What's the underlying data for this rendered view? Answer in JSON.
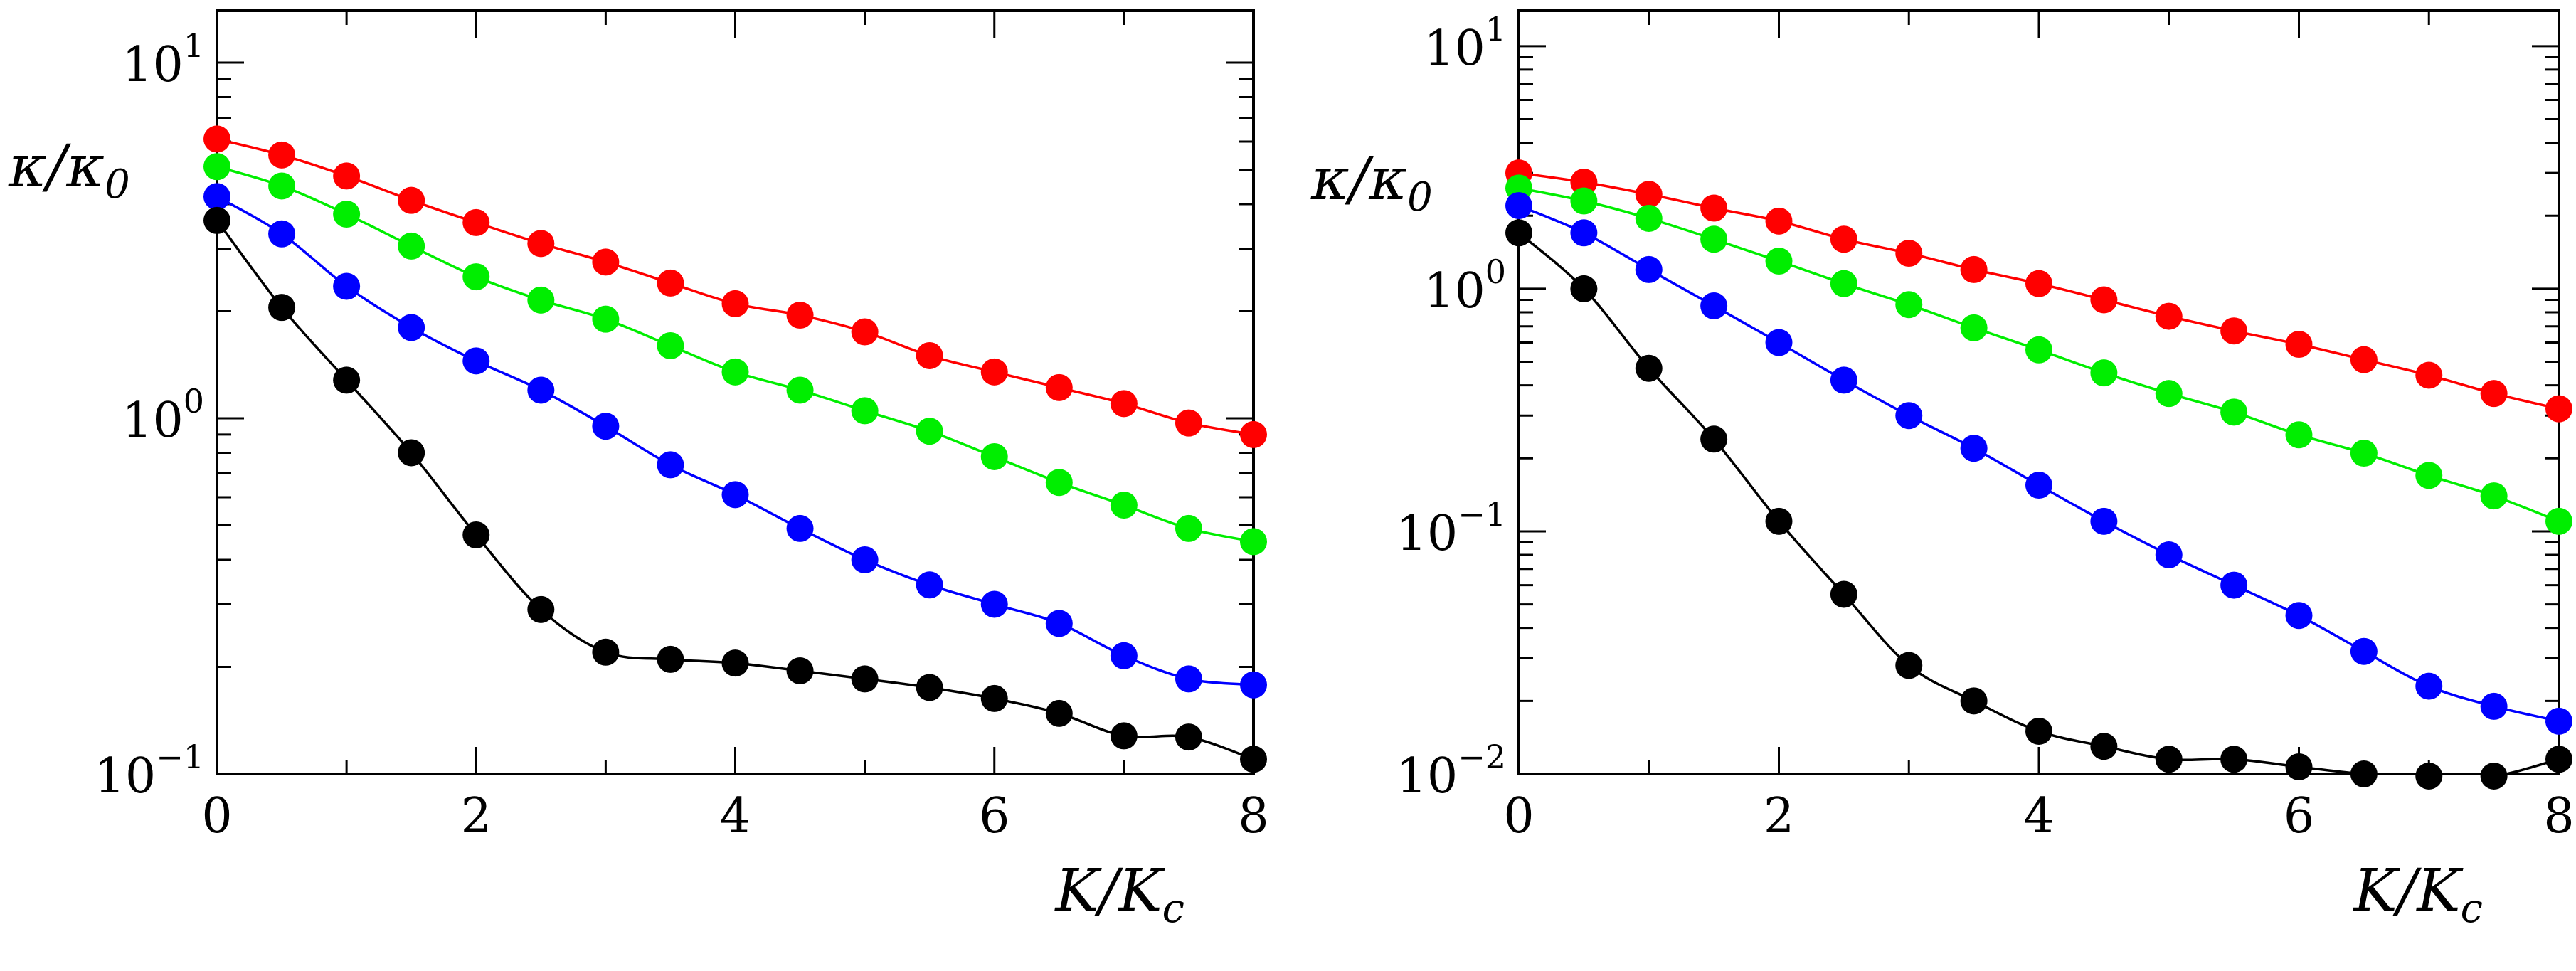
{
  "chart_data": [
    {
      "type": "line",
      "panel": "left",
      "xlabel": {
        "base": "K/K",
        "sub": "c"
      },
      "ylabel": {
        "base": "κ/κ",
        "sub": "0"
      },
      "yscale": "log",
      "xlim": [
        0,
        8
      ],
      "ylim": [
        0.1,
        14
      ],
      "x_ticks": [
        "0",
        "2",
        "4",
        "6",
        "8"
      ],
      "x_tick_values": [
        0,
        2,
        4,
        6,
        8
      ],
      "y_ticks": [
        {
          "value": 10,
          "base": "10",
          "exp": "1"
        },
        {
          "value": 1,
          "base": "10",
          "exp": "0"
        },
        {
          "value": 0.1,
          "base": "10",
          "exp": "−1"
        }
      ],
      "x": [
        0,
        0.5,
        1,
        1.5,
        2,
        2.5,
        3,
        3.5,
        4,
        4.5,
        5,
        5.5,
        6,
        6.5,
        7,
        7.5,
        8
      ],
      "series": [
        {
          "name": "red",
          "color": "#ff0000",
          "values": [
            6.1,
            5.5,
            4.8,
            4.1,
            3.55,
            3.1,
            2.75,
            2.4,
            2.1,
            1.95,
            1.75,
            1.5,
            1.35,
            1.22,
            1.1,
            0.97,
            0.9
          ]
        },
        {
          "name": "green",
          "color": "#00ee00",
          "values": [
            5.1,
            4.5,
            3.75,
            3.05,
            2.5,
            2.15,
            1.9,
            1.6,
            1.35,
            1.2,
            1.05,
            0.92,
            0.78,
            0.66,
            0.57,
            0.49,
            0.45
          ]
        },
        {
          "name": "blue",
          "color": "#0000ff",
          "values": [
            4.2,
            3.3,
            2.35,
            1.8,
            1.45,
            1.2,
            0.95,
            0.74,
            0.61,
            0.49,
            0.4,
            0.34,
            0.3,
            0.265,
            0.215,
            0.185,
            0.178
          ]
        },
        {
          "name": "black",
          "color": "#000000",
          "values": [
            3.6,
            2.05,
            1.28,
            0.8,
            0.47,
            0.29,
            0.22,
            0.21,
            0.205,
            0.195,
            0.185,
            0.175,
            0.163,
            0.148,
            0.128,
            0.127,
            0.11
          ]
        }
      ]
    },
    {
      "type": "line",
      "panel": "right",
      "xlabel": {
        "base": "K/K",
        "sub": "c"
      },
      "ylabel": {
        "base": "κ/κ",
        "sub": "0"
      },
      "yscale": "log",
      "xlim": [
        0,
        8
      ],
      "ylim": [
        0.01,
        14
      ],
      "x_ticks": [
        "0",
        "2",
        "4",
        "6",
        "8"
      ],
      "x_tick_values": [
        0,
        2,
        4,
        6,
        8
      ],
      "y_ticks": [
        {
          "value": 10,
          "base": "10",
          "exp": "1"
        },
        {
          "value": 1,
          "base": "10",
          "exp": "0"
        },
        {
          "value": 0.1,
          "base": "10",
          "exp": "−1"
        },
        {
          "value": 0.01,
          "base": "10",
          "exp": "−2"
        }
      ],
      "x": [
        0,
        0.5,
        1,
        1.5,
        2,
        2.5,
        3,
        3.5,
        4,
        4.5,
        5,
        5.5,
        6,
        6.5,
        7,
        7.5,
        8
      ],
      "series": [
        {
          "name": "red",
          "color": "#ff0000",
          "values": [
            3.0,
            2.75,
            2.45,
            2.15,
            1.9,
            1.6,
            1.4,
            1.2,
            1.05,
            0.9,
            0.77,
            0.67,
            0.59,
            0.51,
            0.44,
            0.37,
            0.32
          ]
        },
        {
          "name": "green",
          "color": "#00ee00",
          "values": [
            2.6,
            2.3,
            1.95,
            1.6,
            1.3,
            1.05,
            0.86,
            0.69,
            0.56,
            0.45,
            0.37,
            0.31,
            0.25,
            0.21,
            0.17,
            0.14,
            0.11
          ]
        },
        {
          "name": "blue",
          "color": "#0000ff",
          "values": [
            2.2,
            1.7,
            1.2,
            0.85,
            0.6,
            0.42,
            0.3,
            0.22,
            0.155,
            0.11,
            0.08,
            0.06,
            0.045,
            0.032,
            0.023,
            0.019,
            0.0165
          ]
        },
        {
          "name": "black",
          "color": "#000000",
          "values": [
            1.7,
            1.0,
            0.47,
            0.24,
            0.11,
            0.055,
            0.028,
            0.02,
            0.015,
            0.013,
            0.0115,
            0.0115,
            0.0107,
            0.01,
            0.0098,
            0.0098,
            0.0115
          ]
        }
      ]
    }
  ]
}
